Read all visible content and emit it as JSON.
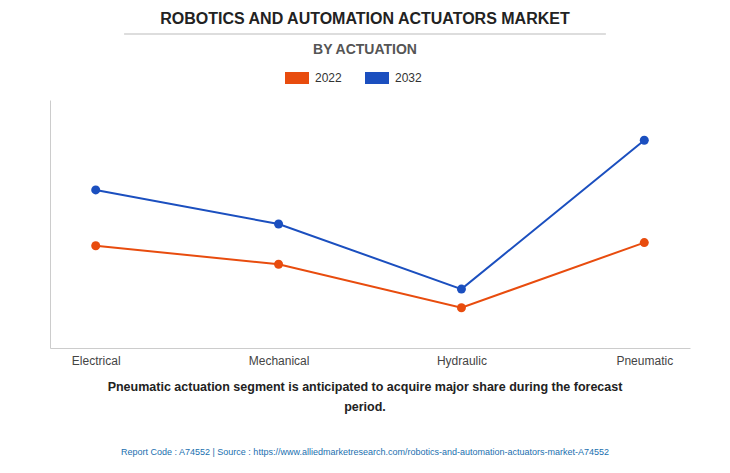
{
  "chart_data": {
    "type": "line",
    "title": "ROBOTICS AND AUTOMATION ACTUATORS MARKET",
    "subtitle": "BY ACTUATION",
    "categories": [
      "Electrical",
      "Mechanical",
      "Hydraulic",
      "Pneumatic"
    ],
    "series": [
      {
        "name": "2022",
        "color": "#E84C0E",
        "values": [
          0.58,
          0.52,
          0.38,
          0.59
        ],
        "marker": "circle"
      },
      {
        "name": "2032",
        "color": "#1B4FBF",
        "values": [
          0.76,
          0.65,
          0.44,
          0.92
        ],
        "marker": "circle"
      }
    ],
    "ylim": [
      0.25,
      1.05
    ],
    "grid": false,
    "legend": "top",
    "tick_labels": "x",
    "annotations": [
      "Pneumatic actuation segment is anticipated to acquire major share during the forecast",
      "period.",
      "Report Code : A74552  |  Source : https://www.alliedmarketresearch.com/robotics-and-automation-actuators-market-A74552"
    ]
  }
}
